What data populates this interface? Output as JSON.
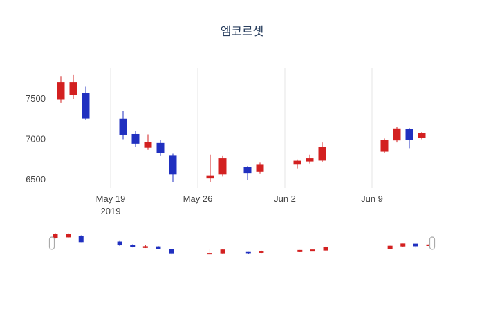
{
  "chart_data": {
    "type": "candlestick",
    "title": "엠코르셋",
    "colors": {
      "increasing": "#d32020",
      "decreasing": "#2030c0"
    },
    "y_axis": {
      "ticks": [
        6500,
        7000,
        7500
      ],
      "range": [
        6415,
        7870
      ]
    },
    "x_axis": {
      "gridlines": [
        {
          "label": "May 19",
          "sublabel": "2019",
          "day": 7
        },
        {
          "label": "May 26",
          "sublabel": "",
          "day": 14
        },
        {
          "label": "Jun 2",
          "sublabel": "",
          "day": 21
        },
        {
          "label": "Jun 9",
          "sublabel": "",
          "day": 28
        }
      ]
    },
    "candles": [
      {
        "date": "May 15",
        "day": 3,
        "open": 7500,
        "high": 7780,
        "low": 7450,
        "close": 7700
      },
      {
        "date": "May 16",
        "day": 4,
        "open": 7550,
        "high": 7800,
        "low": 7500,
        "close": 7700
      },
      {
        "date": "May 17",
        "day": 5,
        "open": 7570,
        "high": 7650,
        "low": 7240,
        "close": 7260
      },
      {
        "date": "May 20",
        "day": 8,
        "open": 7250,
        "high": 7350,
        "low": 7000,
        "close": 7060
      },
      {
        "date": "May 21",
        "day": 9,
        "open": 7060,
        "high": 7100,
        "low": 6910,
        "close": 6950
      },
      {
        "date": "May 22",
        "day": 10,
        "open": 6900,
        "high": 7060,
        "low": 6870,
        "close": 6960
      },
      {
        "date": "May 23",
        "day": 11,
        "open": 6950,
        "high": 6990,
        "low": 6800,
        "close": 6830
      },
      {
        "date": "May 24",
        "day": 12,
        "open": 6800,
        "high": 6820,
        "low": 6470,
        "close": 6570
      },
      {
        "date": "May 27",
        "day": 15,
        "open": 6520,
        "high": 6810,
        "low": 6470,
        "close": 6550
      },
      {
        "date": "May 28",
        "day": 16,
        "open": 6570,
        "high": 6800,
        "low": 6540,
        "close": 6760
      },
      {
        "date": "May 30",
        "day": 18,
        "open": 6650,
        "high": 6670,
        "low": 6500,
        "close": 6580
      },
      {
        "date": "May 31",
        "day": 19,
        "open": 6600,
        "high": 6710,
        "low": 6570,
        "close": 6680
      },
      {
        "date": "Jun 3",
        "day": 22,
        "open": 6690,
        "high": 6750,
        "low": 6640,
        "close": 6730
      },
      {
        "date": "Jun 4",
        "day": 23,
        "open": 6730,
        "high": 6810,
        "low": 6700,
        "close": 6760
      },
      {
        "date": "Jun 5",
        "day": 24,
        "open": 6740,
        "high": 6960,
        "low": 6720,
        "close": 6900
      },
      {
        "date": "Jun 10",
        "day": 29,
        "open": 6850,
        "high": 7010,
        "low": 6830,
        "close": 6990
      },
      {
        "date": "Jun 11",
        "day": 30,
        "open": 6990,
        "high": 7150,
        "low": 6960,
        "close": 7130
      },
      {
        "date": "Jun 12",
        "day": 31,
        "open": 7120,
        "high": 7140,
        "low": 6890,
        "close": 7000
      },
      {
        "date": "Jun 13",
        "day": 32,
        "open": 7020,
        "high": 7090,
        "low": 7000,
        "close": 7070
      }
    ]
  }
}
